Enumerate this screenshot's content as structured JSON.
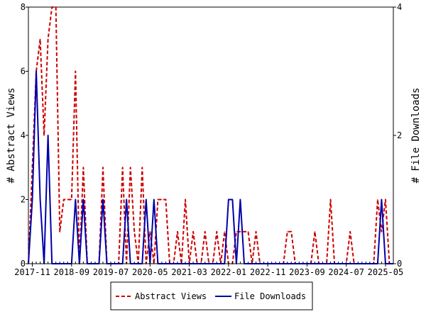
{
  "chart_data": {
    "type": "line",
    "title": "",
    "ylabel": "# Abstract Views",
    "y2label": "# File Downloads",
    "ylim": [
      0,
      8
    ],
    "y2lim": [
      0,
      4
    ],
    "yticks": [
      "0",
      "2",
      "4",
      "6",
      "8"
    ],
    "y2ticks": [
      "0",
      "2",
      "4"
    ],
    "xlim": [
      "2017-10",
      "2025-07"
    ],
    "xticks": [
      "2017-11",
      "2018-09",
      "2019-07",
      "2020-05",
      "2021-03",
      "2022-01",
      "2022-11",
      "2023-09",
      "2024-07",
      "2025-05"
    ],
    "grid": false,
    "legend_position": "bottom",
    "series": [
      {
        "name": "Abstract Views",
        "axis": "left",
        "color": "#cc0000",
        "style": "dashed",
        "points": [
          [
            "2017-10",
            0
          ],
          [
            "2017-11",
            3
          ],
          [
            "2017-12",
            6
          ],
          [
            "2018-01",
            7
          ],
          [
            "2018-02",
            4
          ],
          [
            "2018-03",
            7
          ],
          [
            "2018-04",
            8
          ],
          [
            "2018-05",
            8
          ],
          [
            "2018-06",
            1
          ],
          [
            "2018-07",
            2
          ],
          [
            "2018-08",
            2
          ],
          [
            "2018-09",
            2
          ],
          [
            "2018-10",
            6
          ],
          [
            "2018-11",
            0
          ],
          [
            "2018-12",
            3
          ],
          [
            "2019-01",
            0
          ],
          [
            "2019-02",
            0
          ],
          [
            "2019-03",
            0
          ],
          [
            "2019-04",
            0
          ],
          [
            "2019-05",
            3
          ],
          [
            "2019-06",
            0
          ],
          [
            "2019-07",
            0
          ],
          [
            "2019-08",
            0
          ],
          [
            "2019-09",
            0
          ],
          [
            "2019-10",
            3
          ],
          [
            "2019-11",
            0
          ],
          [
            "2019-12",
            3
          ],
          [
            "2020-01",
            1
          ],
          [
            "2020-02",
            0
          ],
          [
            "2020-03",
            3
          ],
          [
            "2020-04",
            0
          ],
          [
            "2020-05",
            1
          ],
          [
            "2020-06",
            0
          ],
          [
            "2020-07",
            2
          ],
          [
            "2020-08",
            2
          ],
          [
            "2020-09",
            2
          ],
          [
            "2020-10",
            0
          ],
          [
            "2020-11",
            0
          ],
          [
            "2020-12",
            1
          ],
          [
            "2021-01",
            0
          ],
          [
            "2021-02",
            2
          ],
          [
            "2021-03",
            0
          ],
          [
            "2021-04",
            1
          ],
          [
            "2021-05",
            0
          ],
          [
            "2021-06",
            0
          ],
          [
            "2021-07",
            1
          ],
          [
            "2021-08",
            0
          ],
          [
            "2021-09",
            0
          ],
          [
            "2021-10",
            1
          ],
          [
            "2021-11",
            0
          ],
          [
            "2021-12",
            1
          ],
          [
            "2022-01",
            0
          ],
          [
            "2022-02",
            0
          ],
          [
            "2022-03",
            1
          ],
          [
            "2022-04",
            1
          ],
          [
            "2022-05",
            1
          ],
          [
            "2022-06",
            1
          ],
          [
            "2022-07",
            0
          ],
          [
            "2022-08",
            1
          ],
          [
            "2022-09",
            0
          ],
          [
            "2022-10",
            0
          ],
          [
            "2022-11",
            0
          ],
          [
            "2022-12",
            0
          ],
          [
            "2023-01",
            0
          ],
          [
            "2023-02",
            0
          ],
          [
            "2023-03",
            0
          ],
          [
            "2023-04",
            1
          ],
          [
            "2023-05",
            1
          ],
          [
            "2023-06",
            0
          ],
          [
            "2023-07",
            0
          ],
          [
            "2023-08",
            0
          ],
          [
            "2023-09",
            0
          ],
          [
            "2023-10",
            0
          ],
          [
            "2023-11",
            1
          ],
          [
            "2023-12",
            0
          ],
          [
            "2024-01",
            0
          ],
          [
            "2024-02",
            0
          ],
          [
            "2024-03",
            2
          ],
          [
            "2024-04",
            0
          ],
          [
            "2024-05",
            0
          ],
          [
            "2024-06",
            0
          ],
          [
            "2024-07",
            0
          ],
          [
            "2024-08",
            1
          ],
          [
            "2024-09",
            0
          ],
          [
            "2024-10",
            0
          ],
          [
            "2024-11",
            0
          ],
          [
            "2024-12",
            0
          ],
          [
            "2025-01",
            0
          ],
          [
            "2025-02",
            0
          ],
          [
            "2025-03",
            2
          ],
          [
            "2025-04",
            1
          ],
          [
            "2025-05",
            2
          ],
          [
            "2025-06",
            0
          ],
          [
            "2025-07",
            0
          ]
        ]
      },
      {
        "name": "File Downloads",
        "axis": "right",
        "color": "#0000aa",
        "style": "solid",
        "points": [
          [
            "2017-10",
            0
          ],
          [
            "2017-11",
            1
          ],
          [
            "2017-12",
            3
          ],
          [
            "2018-01",
            1
          ],
          [
            "2018-02",
            0
          ],
          [
            "2018-03",
            2
          ],
          [
            "2018-04",
            0
          ],
          [
            "2018-05",
            0
          ],
          [
            "2018-06",
            0
          ],
          [
            "2018-07",
            0
          ],
          [
            "2018-08",
            0
          ],
          [
            "2018-09",
            0
          ],
          [
            "2018-10",
            1
          ],
          [
            "2018-11",
            0
          ],
          [
            "2018-12",
            1
          ],
          [
            "2019-01",
            0
          ],
          [
            "2019-02",
            0
          ],
          [
            "2019-03",
            0
          ],
          [
            "2019-04",
            0
          ],
          [
            "2019-05",
            1
          ],
          [
            "2019-06",
            0
          ],
          [
            "2019-07",
            0
          ],
          [
            "2019-08",
            0
          ],
          [
            "2019-09",
            0
          ],
          [
            "2019-10",
            0
          ],
          [
            "2019-11",
            1
          ],
          [
            "2019-12",
            0
          ],
          [
            "2020-01",
            0
          ],
          [
            "2020-02",
            0
          ],
          [
            "2020-03",
            0
          ],
          [
            "2020-04",
            1
          ],
          [
            "2020-05",
            0
          ],
          [
            "2020-06",
            1
          ],
          [
            "2020-07",
            0
          ],
          [
            "2020-08",
            0
          ],
          [
            "2020-09",
            0
          ],
          [
            "2020-10",
            0
          ],
          [
            "2020-11",
            0
          ],
          [
            "2020-12",
            0
          ],
          [
            "2021-01",
            0
          ],
          [
            "2021-02",
            0
          ],
          [
            "2021-03",
            0
          ],
          [
            "2021-04",
            0
          ],
          [
            "2021-05",
            0
          ],
          [
            "2021-06",
            0
          ],
          [
            "2021-07",
            0
          ],
          [
            "2021-08",
            0
          ],
          [
            "2021-09",
            0
          ],
          [
            "2021-10",
            0
          ],
          [
            "2021-11",
            0
          ],
          [
            "2021-12",
            0
          ],
          [
            "2022-01",
            1
          ],
          [
            "2022-02",
            1
          ],
          [
            "2022-03",
            0
          ],
          [
            "2022-04",
            1
          ],
          [
            "2022-05",
            0
          ],
          [
            "2022-06",
            0
          ],
          [
            "2022-07",
            0
          ],
          [
            "2022-08",
            0
          ],
          [
            "2022-09",
            0
          ],
          [
            "2022-10",
            0
          ],
          [
            "2022-11",
            0
          ],
          [
            "2022-12",
            0
          ],
          [
            "2023-01",
            0
          ],
          [
            "2023-02",
            0
          ],
          [
            "2023-03",
            0
          ],
          [
            "2023-04",
            0
          ],
          [
            "2023-05",
            0
          ],
          [
            "2023-06",
            0
          ],
          [
            "2023-07",
            0
          ],
          [
            "2023-08",
            0
          ],
          [
            "2023-09",
            0
          ],
          [
            "2023-10",
            0
          ],
          [
            "2023-11",
            0
          ],
          [
            "2023-12",
            0
          ],
          [
            "2024-01",
            0
          ],
          [
            "2024-02",
            0
          ],
          [
            "2024-03",
            0
          ],
          [
            "2024-04",
            0
          ],
          [
            "2024-05",
            0
          ],
          [
            "2024-06",
            0
          ],
          [
            "2024-07",
            0
          ],
          [
            "2024-08",
            0
          ],
          [
            "2024-09",
            0
          ],
          [
            "2024-10",
            0
          ],
          [
            "2024-11",
            0
          ],
          [
            "2024-12",
            0
          ],
          [
            "2025-01",
            0
          ],
          [
            "2025-02",
            0
          ],
          [
            "2025-03",
            0
          ],
          [
            "2025-04",
            1
          ],
          [
            "2025-05",
            0
          ],
          [
            "2025-06",
            0
          ],
          [
            "2025-07",
            0
          ]
        ]
      }
    ]
  }
}
